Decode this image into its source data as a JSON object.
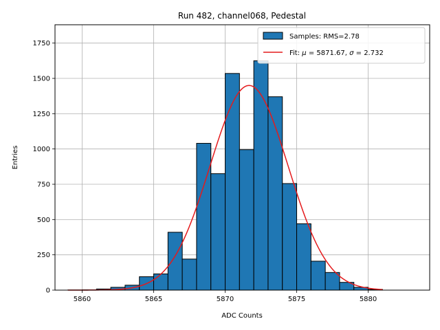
{
  "chart_data": {
    "type": "bar",
    "title": "Run 482, channel068, Pedestal",
    "xlabel": "ADC Counts",
    "ylabel": "Entries",
    "xlim": [
      5858.1,
      5884.3
    ],
    "ylim": [
      0,
      1880
    ],
    "xticks": [
      5860,
      5865,
      5870,
      5875,
      5880
    ],
    "yticks": [
      0,
      250,
      500,
      750,
      1000,
      1250,
      1500,
      1750
    ],
    "grid": true,
    "legend_position": "top-right",
    "histogram": {
      "name": "Samples: RMS=2.78",
      "color": "#1f77b4",
      "edgecolor": "#000000",
      "bin_edges": [
        5859,
        5860,
        5861,
        5862,
        5863,
        5864,
        5865,
        5866,
        5867,
        5868,
        5869,
        5870,
        5871,
        5872,
        5873,
        5874,
        5875,
        5876,
        5877,
        5878,
        5879,
        5880,
        5881
      ],
      "counts": [
        1,
        2,
        8,
        20,
        35,
        95,
        115,
        410,
        220,
        1040,
        825,
        1535,
        995,
        1625,
        1370,
        755,
        470,
        205,
        125,
        55,
        20,
        5
      ]
    },
    "fit": {
      "name": "Fit: μ = 5871.67, σ = 2.732",
      "label_parts": [
        "Fit: ",
        "μ",
        " = 5871.67, ",
        "σ",
        " = 2.732"
      ],
      "color": "#e41a1c",
      "mu": 5871.67,
      "sigma": 2.732,
      "amplitude": 1450,
      "x_range": [
        5859,
        5881
      ]
    }
  }
}
